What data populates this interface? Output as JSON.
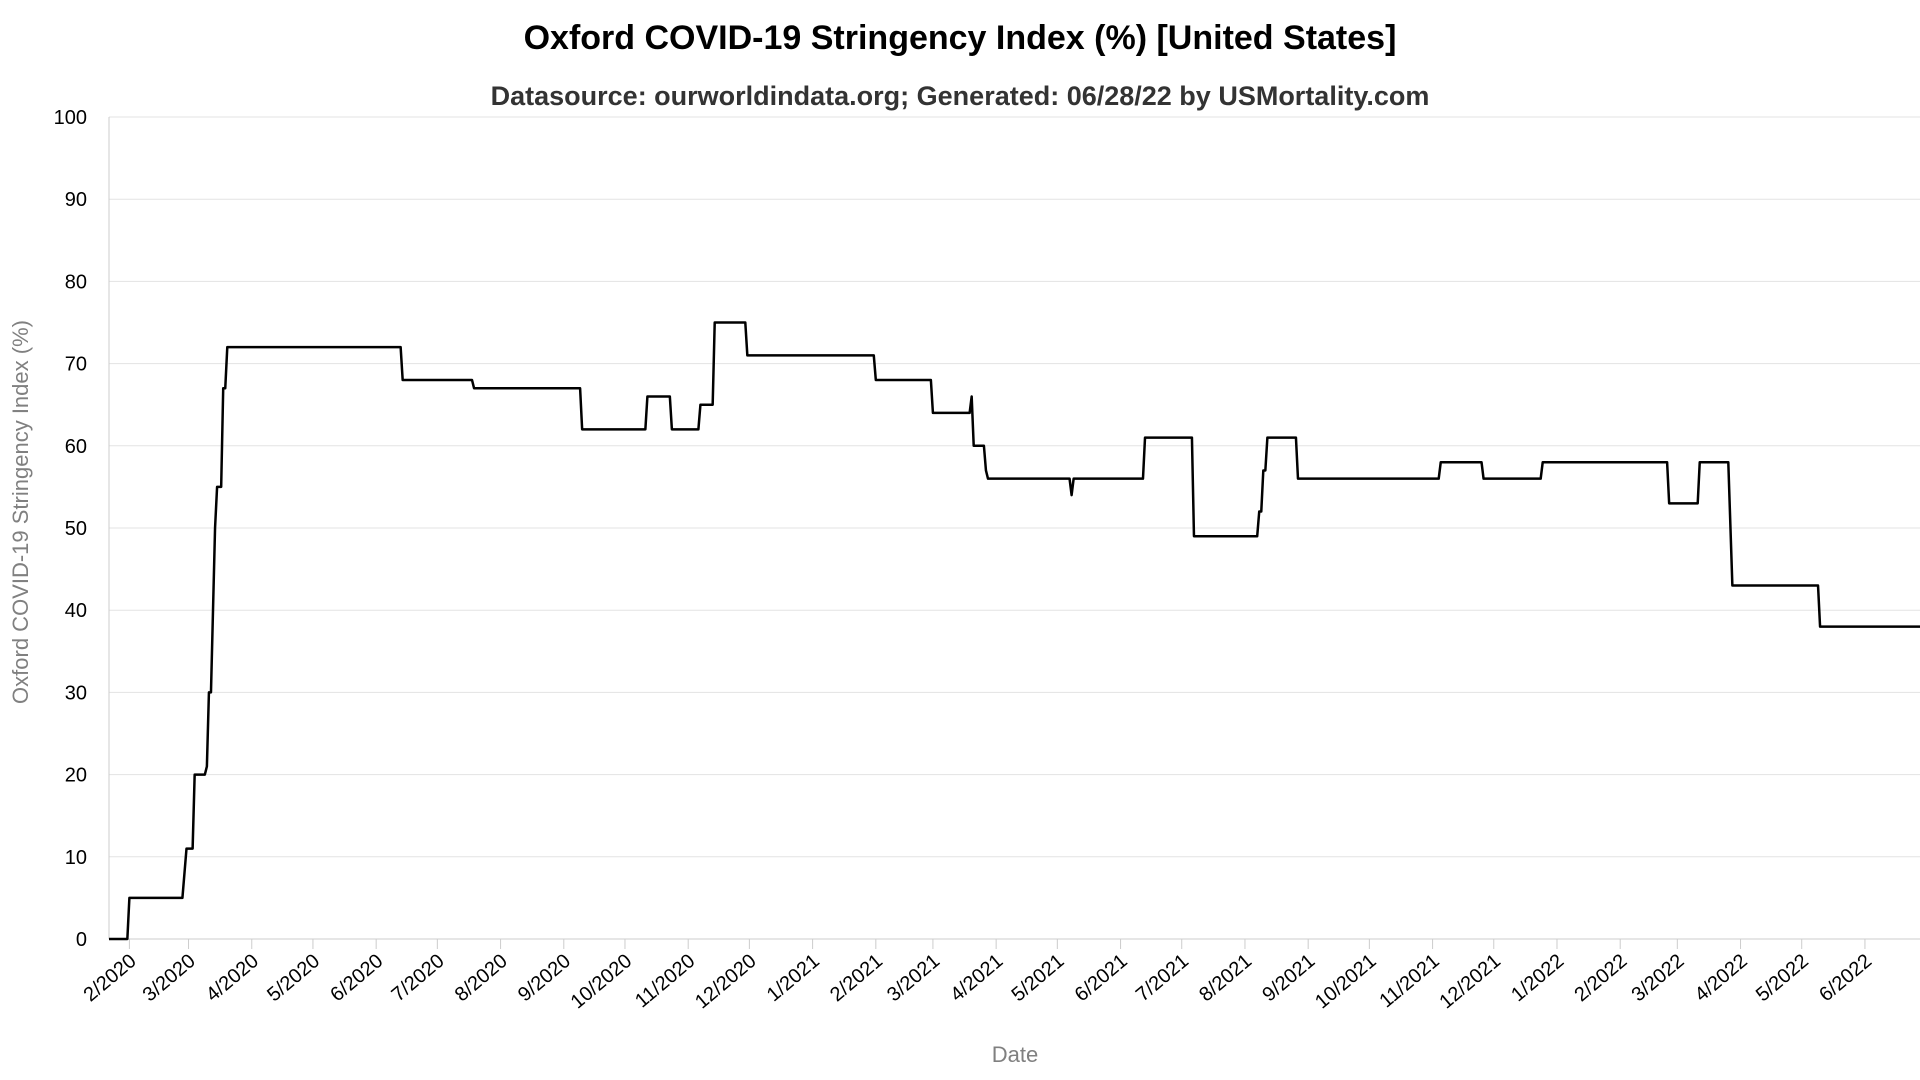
{
  "chart_data": {
    "type": "line",
    "title": "Oxford COVID-19 Stringency Index (%) [United States]",
    "subtitle": "Datasource: ourworldindata.org; Generated: 06/28/22 by USMortality.com",
    "xlabel": "Date",
    "ylabel": "Oxford COVID-19 Stringency Index (%)",
    "ylim": [
      0,
      100
    ],
    "yticks": [
      0,
      10,
      20,
      30,
      40,
      50,
      60,
      70,
      80,
      90,
      100
    ],
    "xlim": [
      "2020-01-22",
      "2022-06-28"
    ],
    "xticks": [
      {
        "date": "2020-02-01",
        "label": "2/2020"
      },
      {
        "date": "2020-03-01",
        "label": "3/2020"
      },
      {
        "date": "2020-04-01",
        "label": "4/2020"
      },
      {
        "date": "2020-05-01",
        "label": "5/2020"
      },
      {
        "date": "2020-06-01",
        "label": "6/2020"
      },
      {
        "date": "2020-07-01",
        "label": "7/2020"
      },
      {
        "date": "2020-08-01",
        "label": "8/2020"
      },
      {
        "date": "2020-09-01",
        "label": "9/2020"
      },
      {
        "date": "2020-10-01",
        "label": "10/2020"
      },
      {
        "date": "2020-11-01",
        "label": "11/2020"
      },
      {
        "date": "2020-12-01",
        "label": "12/2020"
      },
      {
        "date": "2021-01-01",
        "label": "1/2021"
      },
      {
        "date": "2021-02-01",
        "label": "2/2021"
      },
      {
        "date": "2021-03-01",
        "label": "3/2021"
      },
      {
        "date": "2021-04-01",
        "label": "4/2021"
      },
      {
        "date": "2021-05-01",
        "label": "5/2021"
      },
      {
        "date": "2021-06-01",
        "label": "6/2021"
      },
      {
        "date": "2021-07-01",
        "label": "7/2021"
      },
      {
        "date": "2021-08-01",
        "label": "8/2021"
      },
      {
        "date": "2021-09-01",
        "label": "9/2021"
      },
      {
        "date": "2021-10-01",
        "label": "10/2021"
      },
      {
        "date": "2021-11-01",
        "label": "11/2021"
      },
      {
        "date": "2021-12-01",
        "label": "12/2021"
      },
      {
        "date": "2022-01-01",
        "label": "1/2022"
      },
      {
        "date": "2022-02-01",
        "label": "2/2022"
      },
      {
        "date": "2022-03-01",
        "label": "3/2022"
      },
      {
        "date": "2022-04-01",
        "label": "4/2022"
      },
      {
        "date": "2022-05-01",
        "label": "5/2022"
      },
      {
        "date": "2022-06-01",
        "label": "6/2022"
      }
    ],
    "grid": true,
    "series": [
      {
        "color": "#000000",
        "points": [
          [
            "2020-01-22",
            0
          ],
          [
            "2020-01-31",
            0
          ],
          [
            "2020-02-01",
            5
          ],
          [
            "2020-02-27",
            5
          ],
          [
            "2020-02-29",
            11
          ],
          [
            "2020-03-03",
            11
          ],
          [
            "2020-03-04",
            20
          ],
          [
            "2020-03-09",
            20
          ],
          [
            "2020-03-10",
            21
          ],
          [
            "2020-03-11",
            30
          ],
          [
            "2020-03-12",
            30
          ],
          [
            "2020-03-13",
            40
          ],
          [
            "2020-03-14",
            50
          ],
          [
            "2020-03-15",
            55
          ],
          [
            "2020-03-17",
            55
          ],
          [
            "2020-03-18",
            67
          ],
          [
            "2020-03-19",
            67
          ],
          [
            "2020-03-20",
            72
          ],
          [
            "2020-06-13",
            72
          ],
          [
            "2020-06-14",
            68
          ],
          [
            "2020-07-18",
            68
          ],
          [
            "2020-07-19",
            67
          ],
          [
            "2020-09-09",
            67
          ],
          [
            "2020-09-10",
            62
          ],
          [
            "2020-10-11",
            62
          ],
          [
            "2020-10-12",
            66
          ],
          [
            "2020-10-23",
            66
          ],
          [
            "2020-10-24",
            62
          ],
          [
            "2020-11-06",
            62
          ],
          [
            "2020-11-07",
            65
          ],
          [
            "2020-11-13",
            65
          ],
          [
            "2020-11-14",
            75
          ],
          [
            "2020-11-29",
            75
          ],
          [
            "2020-11-30",
            71
          ],
          [
            "2021-01-31",
            71
          ],
          [
            "2021-02-01",
            68
          ],
          [
            "2021-02-28",
            68
          ],
          [
            "2021-03-01",
            64
          ],
          [
            "2021-03-19",
            64
          ],
          [
            "2021-03-20",
            66
          ],
          [
            "2021-03-21",
            60
          ],
          [
            "2021-03-26",
            60
          ],
          [
            "2021-03-27",
            57
          ],
          [
            "2021-03-28",
            56
          ],
          [
            "2021-05-07",
            56
          ],
          [
            "2021-05-08",
            54
          ],
          [
            "2021-05-09",
            56
          ],
          [
            "2021-06-12",
            56
          ],
          [
            "2021-06-13",
            61
          ],
          [
            "2021-07-06",
            61
          ],
          [
            "2021-07-07",
            49
          ],
          [
            "2021-08-07",
            49
          ],
          [
            "2021-08-08",
            52
          ],
          [
            "2021-08-09",
            52
          ],
          [
            "2021-08-10",
            57
          ],
          [
            "2021-08-11",
            57
          ],
          [
            "2021-08-12",
            61
          ],
          [
            "2021-08-26",
            61
          ],
          [
            "2021-08-27",
            56
          ],
          [
            "2021-11-04",
            56
          ],
          [
            "2021-11-05",
            58
          ],
          [
            "2021-11-25",
            58
          ],
          [
            "2021-11-26",
            56
          ],
          [
            "2021-12-24",
            56
          ],
          [
            "2021-12-25",
            58
          ],
          [
            "2022-02-24",
            58
          ],
          [
            "2022-02-25",
            53
          ],
          [
            "2022-03-11",
            53
          ],
          [
            "2022-03-12",
            58
          ],
          [
            "2022-03-26",
            58
          ],
          [
            "2022-03-28",
            43
          ],
          [
            "2022-05-09",
            43
          ],
          [
            "2022-05-10",
            38
          ],
          [
            "2022-06-28",
            38
          ]
        ]
      }
    ]
  }
}
